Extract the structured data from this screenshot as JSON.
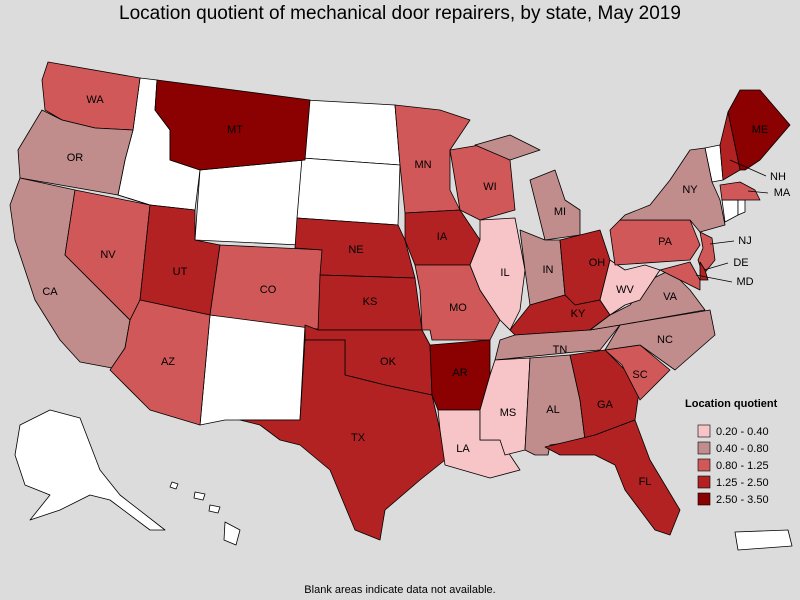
{
  "title": "Location quotient of mechanical door repairers, by state, May 2019",
  "note": "Blank areas indicate data not available.",
  "legend": {
    "title": "Location quotient",
    "items": [
      {
        "label": "0.20 - 0.40",
        "color": "#f7c4c8"
      },
      {
        "label": "0.40 - 0.80",
        "color": "#c08c8c"
      },
      {
        "label": "0.80 - 1.25",
        "color": "#d05858"
      },
      {
        "label": "1.25 - 2.50",
        "color": "#b22222"
      },
      {
        "label": "2.50 - 3.50",
        "color": "#8b0000"
      }
    ]
  },
  "states": [
    {
      "label": "WA",
      "color": "#d05858"
    },
    {
      "label": "OR",
      "color": "#c08c8c"
    },
    {
      "label": "CA",
      "color": "#c08c8c"
    },
    {
      "label": "NV",
      "color": "#d05858"
    },
    {
      "label": "MT",
      "color": "#8b0000"
    },
    {
      "label": "UT",
      "color": "#b22222"
    },
    {
      "label": "AZ",
      "color": "#d05858"
    },
    {
      "label": "CO",
      "color": "#d05858"
    },
    {
      "label": "NE",
      "color": "#b22222"
    },
    {
      "label": "KS",
      "color": "#b22222"
    },
    {
      "label": "OK",
      "color": "#b22222"
    },
    {
      "label": "TX",
      "color": "#b22222"
    },
    {
      "label": "MN",
      "color": "#d05858"
    },
    {
      "label": "IA",
      "color": "#b22222"
    },
    {
      "label": "MO",
      "color": "#d05858"
    },
    {
      "label": "AR",
      "color": "#8b0000"
    },
    {
      "label": "LA",
      "color": "#f7c4c8"
    },
    {
      "label": "WI",
      "color": "#d05858"
    },
    {
      "label": "IL",
      "color": "#f7c4c8"
    },
    {
      "label": "MI",
      "color": "#c08c8c"
    },
    {
      "label": "IN",
      "color": "#c08c8c"
    },
    {
      "label": "OH",
      "color": "#b22222"
    },
    {
      "label": "KY",
      "color": "#b22222"
    },
    {
      "label": "TN",
      "color": "#c08c8c"
    },
    {
      "label": "MS",
      "color": "#f7c4c8"
    },
    {
      "label": "AL",
      "color": "#c08c8c"
    },
    {
      "label": "GA",
      "color": "#b22222"
    },
    {
      "label": "FL",
      "color": "#b22222"
    },
    {
      "label": "SC",
      "color": "#d05858"
    },
    {
      "label": "NC",
      "color": "#c08c8c"
    },
    {
      "label": "VA",
      "color": "#c08c8c"
    },
    {
      "label": "WV",
      "color": "#f7c4c8"
    },
    {
      "label": "PA",
      "color": "#d05858"
    },
    {
      "label": "NY",
      "color": "#c08c8c"
    },
    {
      "label": "ME",
      "color": "#8b0000"
    },
    {
      "label": "NH",
      "color": "#b22222"
    },
    {
      "label": "MA",
      "color": "#d05858"
    },
    {
      "label": "NJ",
      "color": "#d05858"
    },
    {
      "label": "DE",
      "color": "#b22222"
    },
    {
      "label": "MD",
      "color": "#d05858"
    }
  ]
}
